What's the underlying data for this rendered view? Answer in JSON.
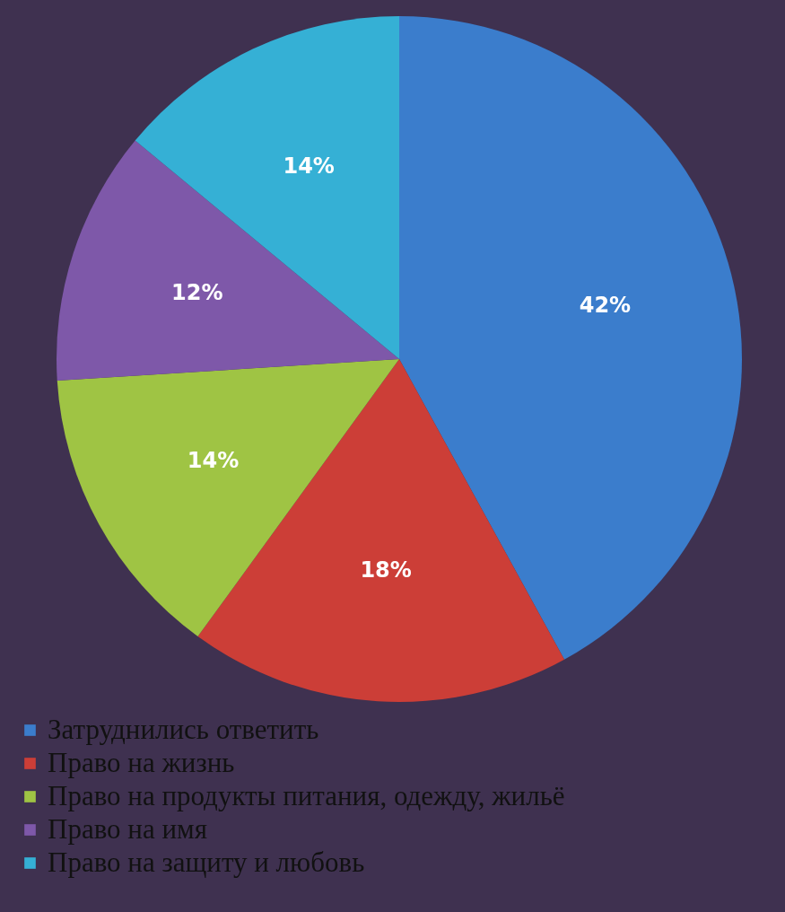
{
  "chart_data": {
    "type": "pie",
    "categories": [
      "Затруднились ответить",
      "Право на жизнь",
      "Право на продукты питания, одежду, жильё",
      "Право на имя",
      "Право на защиту и любовь"
    ],
    "values": [
      42,
      18,
      14,
      12,
      14
    ],
    "colors": [
      "#3b7dcc",
      "#cc3e37",
      "#9fc444",
      "#7e58a9",
      "#35b0d5"
    ],
    "value_labels": [
      "42%",
      "18%",
      "14%",
      "12%",
      "14%"
    ],
    "legend": "bottom left"
  }
}
